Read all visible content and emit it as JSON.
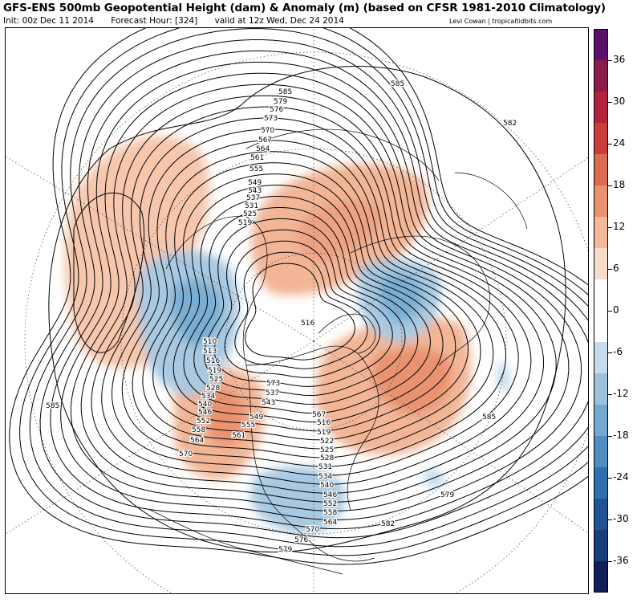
{
  "title": "GFS-ENS 500mb Geopotential Height (dam) & Anomaly (m) (based on CFSR 1981-2010 Climatology)",
  "init": "Init: 00z Dec 11 2014",
  "forecast_hour": "Forecast Hour: [324]",
  "valid": "valid at 12z Wed, Dec 24 2014",
  "credit": "Levi Cowan | tropicaltidbits.com",
  "colorbar": {
    "ticks": [
      "36",
      "30",
      "24",
      "18",
      "12",
      "6",
      "0",
      "-6",
      "-12",
      "-18",
      "-24",
      "-30",
      "-36"
    ],
    "colors": [
      "#5b0f6b",
      "#8b1a4a",
      "#b3213a",
      "#cc3d3a",
      "#dd6b50",
      "#e9926f",
      "#f3b99a",
      "#f8dccb",
      "#ffffff",
      "#ffffff",
      "#c7dbea",
      "#9cc2dd",
      "#74a8d0",
      "#4f8ec2",
      "#2d70ae",
      "#1d5596",
      "#163e7c",
      "#101f59"
    ]
  },
  "contour_labels": [
    "582",
    "579",
    "576",
    "573",
    "570",
    "567",
    "564",
    "561",
    "555",
    "549",
    "543",
    "537",
    "531",
    "525",
    "519",
    "585",
    "585",
    "516",
    "510",
    "513",
    "516",
    "519",
    "525",
    "528",
    "534",
    "540",
    "546",
    "552",
    "558",
    "564",
    "570",
    "573",
    "537",
    "543",
    "549",
    "555",
    "561",
    "567",
    "516",
    "519",
    "522",
    "525",
    "528",
    "531",
    "534",
    "540",
    "546",
    "552",
    "558",
    "564",
    "570",
    "576",
    "579",
    "582",
    "585",
    "579",
    "582",
    "585"
  ]
}
